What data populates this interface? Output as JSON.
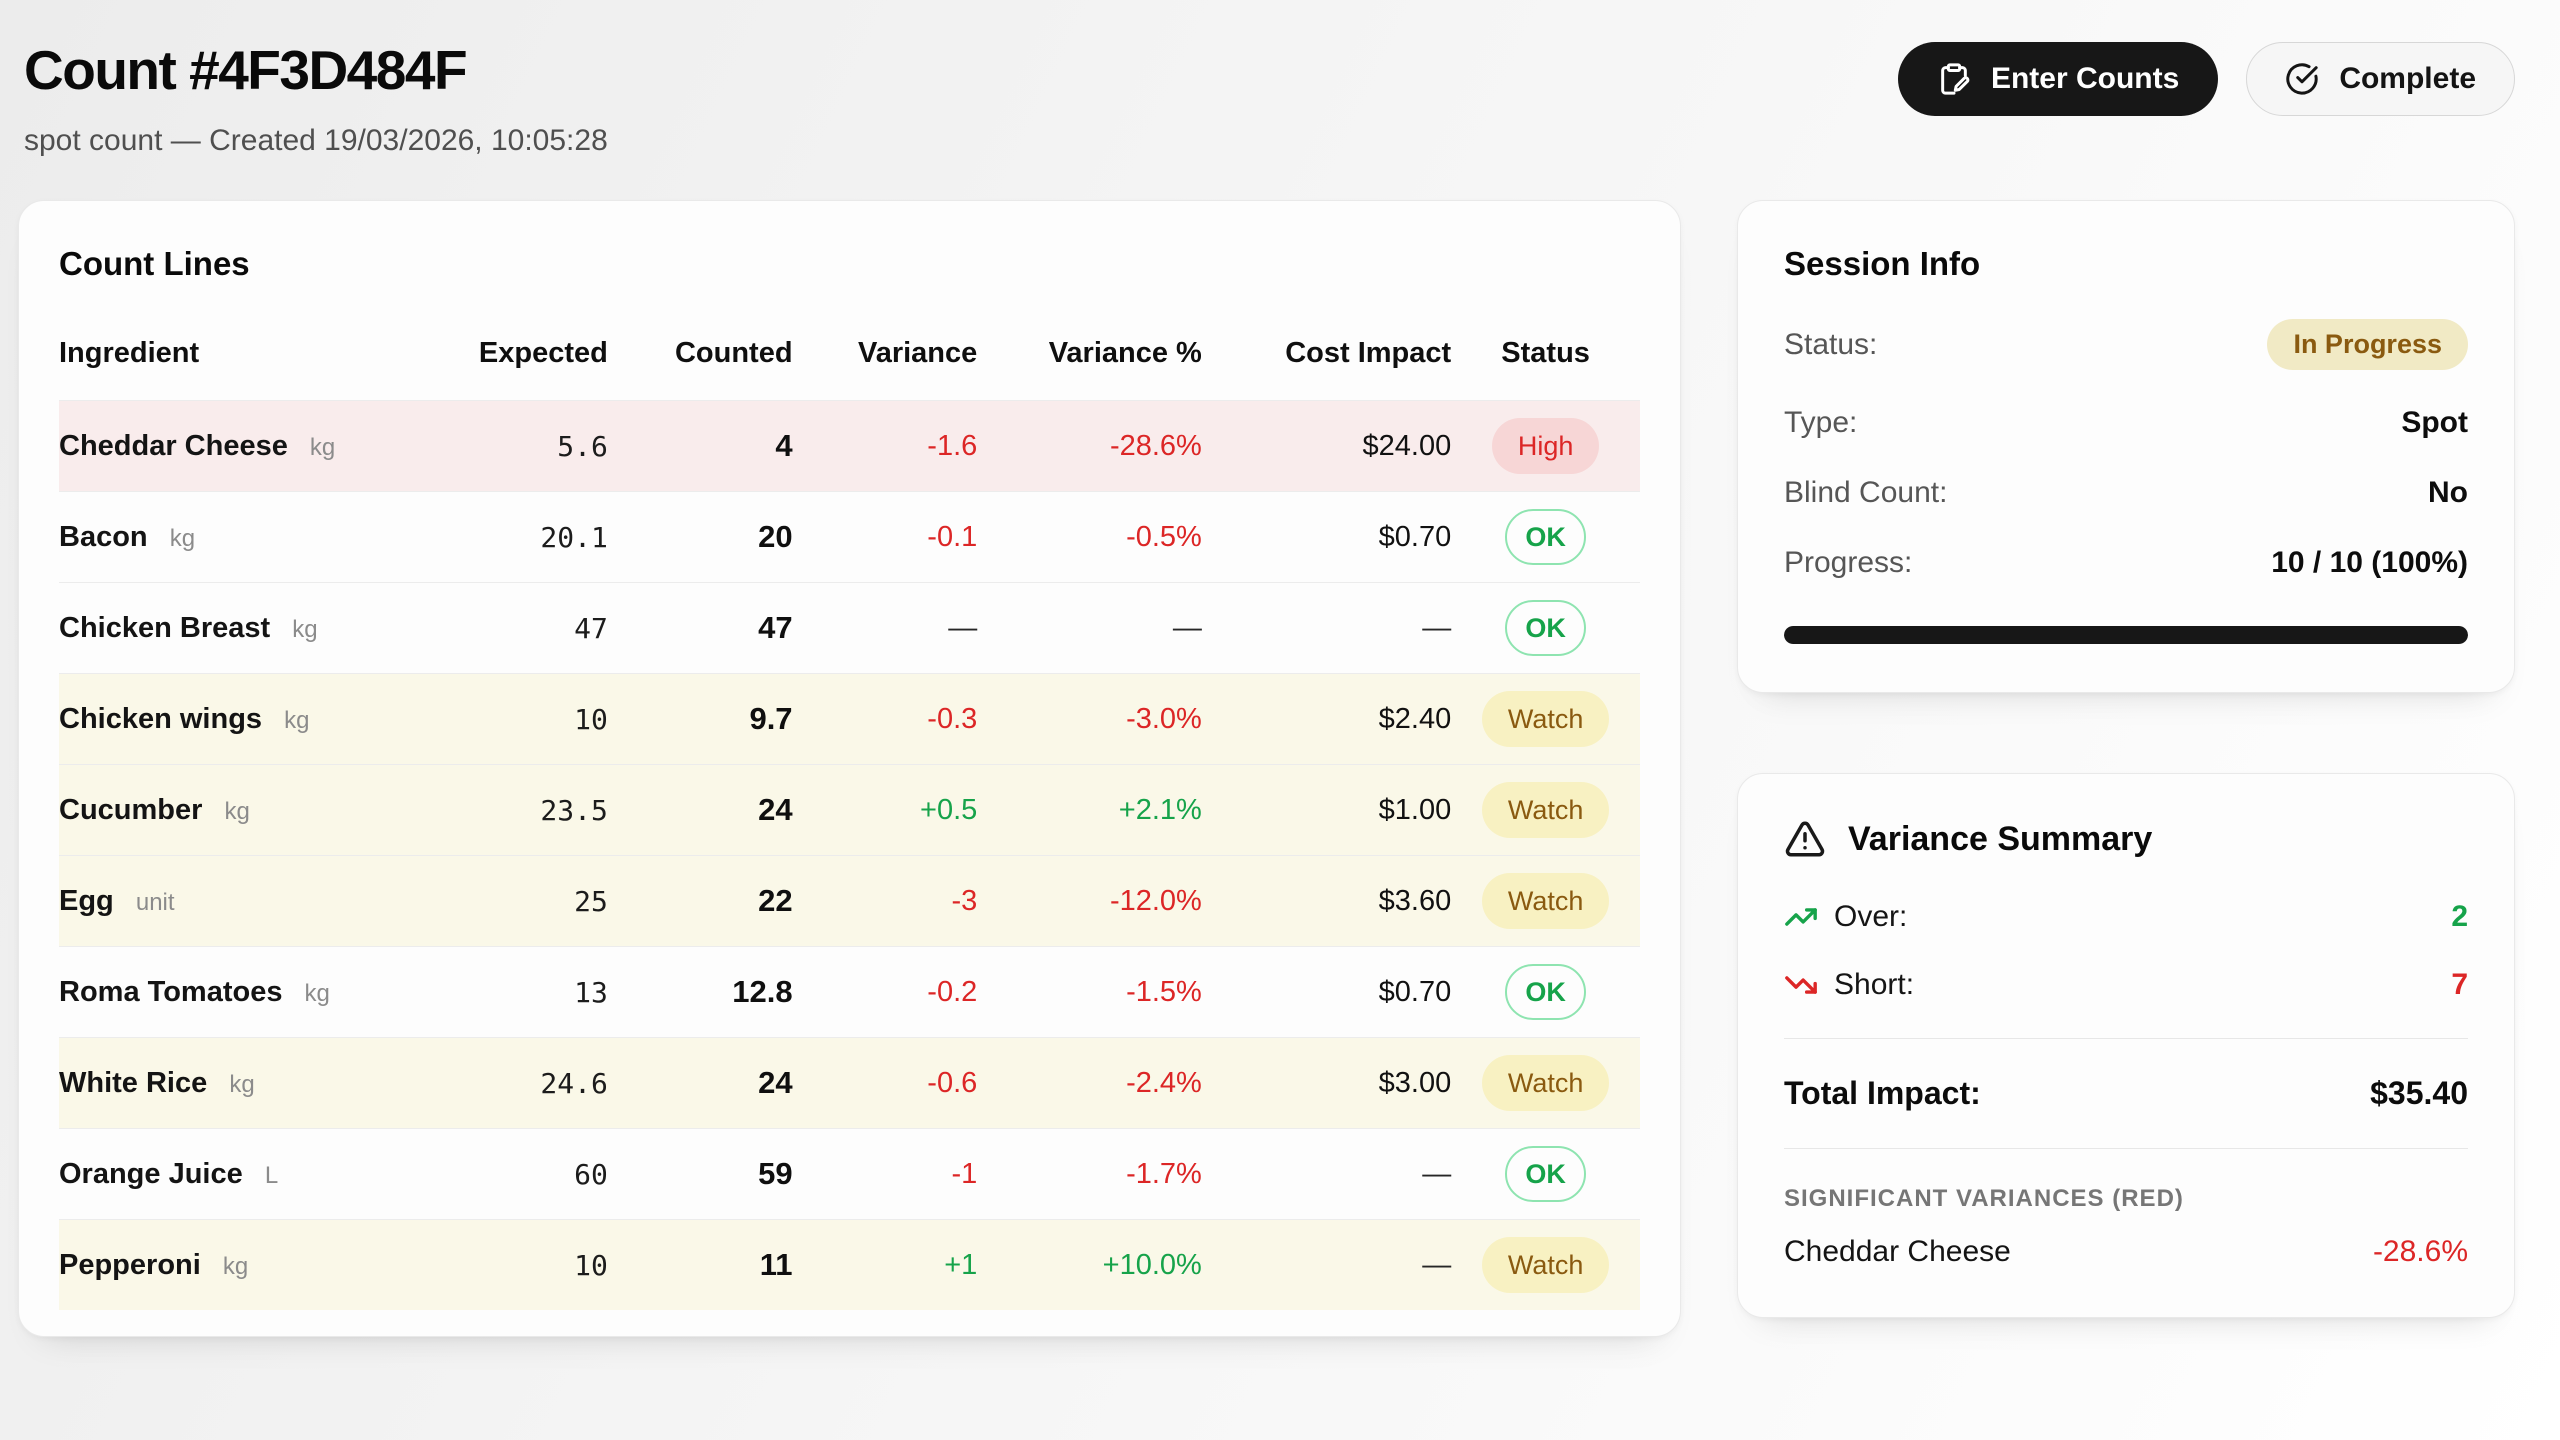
{
  "header": {
    "title": "Count #4F3D484F",
    "subtitle": "spot count — Created 19/03/2026, 10:05:28",
    "buttons": {
      "enter_counts": {
        "label": "Enter Counts",
        "icon": "clipboard-pen-icon"
      },
      "complete": {
        "label": "Complete",
        "icon": "circle-check-icon"
      }
    }
  },
  "count_lines": {
    "title": "Count Lines",
    "columns": [
      "Ingredient",
      "Expected",
      "Counted",
      "Variance",
      "Variance %",
      "Cost Impact",
      "Status"
    ],
    "rows": [
      {
        "ingredient": "Cheddar Cheese",
        "unit": "kg",
        "expected": "5.6",
        "counted": "4",
        "variance": "-1.6",
        "variance_pct": "-28.6%",
        "cost_impact": "$24.00",
        "status": "High",
        "tone": "red",
        "variance_class": "neg",
        "cost_class": "value",
        "status_class": "high"
      },
      {
        "ingredient": "Bacon",
        "unit": "kg",
        "expected": "20.1",
        "counted": "20",
        "variance": "-0.1",
        "variance_pct": "-0.5%",
        "cost_impact": "$0.70",
        "status": "OK",
        "tone": "plain",
        "variance_class": "neg",
        "cost_class": "value",
        "status_class": "ok"
      },
      {
        "ingredient": "Chicken Breast",
        "unit": "kg",
        "expected": "47",
        "counted": "47",
        "variance": "—",
        "variance_pct": "—",
        "cost_impact": "—",
        "status": "OK",
        "tone": "plain",
        "variance_class": "dash",
        "cost_class": "dash",
        "status_class": "ok"
      },
      {
        "ingredient": "Chicken wings",
        "unit": "kg",
        "expected": "10",
        "counted": "9.7",
        "variance": "-0.3",
        "variance_pct": "-3.0%",
        "cost_impact": "$2.40",
        "status": "Watch",
        "tone": "yellow",
        "variance_class": "neg",
        "cost_class": "value",
        "status_class": "watch"
      },
      {
        "ingredient": "Cucumber",
        "unit": "kg",
        "expected": "23.5",
        "counted": "24",
        "variance": "+0.5",
        "variance_pct": "+2.1%",
        "cost_impact": "$1.00",
        "status": "Watch",
        "tone": "yellow",
        "variance_class": "pos",
        "cost_class": "value",
        "status_class": "watch"
      },
      {
        "ingredient": "Egg",
        "unit": "unit",
        "expected": "25",
        "counted": "22",
        "variance": "-3",
        "variance_pct": "-12.0%",
        "cost_impact": "$3.60",
        "status": "Watch",
        "tone": "yellow",
        "variance_class": "neg",
        "cost_class": "value",
        "status_class": "watch"
      },
      {
        "ingredient": "Roma Tomatoes",
        "unit": "kg",
        "expected": "13",
        "counted": "12.8",
        "variance": "-0.2",
        "variance_pct": "-1.5%",
        "cost_impact": "$0.70",
        "status": "OK",
        "tone": "plain",
        "variance_class": "neg",
        "cost_class": "value",
        "status_class": "ok"
      },
      {
        "ingredient": "White Rice",
        "unit": "kg",
        "expected": "24.6",
        "counted": "24",
        "variance": "-0.6",
        "variance_pct": "-2.4%",
        "cost_impact": "$3.00",
        "status": "Watch",
        "tone": "yellow",
        "variance_class": "neg",
        "cost_class": "value",
        "status_class": "watch"
      },
      {
        "ingredient": "Orange Juice",
        "unit": "L",
        "expected": "60",
        "counted": "59",
        "variance": "-1",
        "variance_pct": "-1.7%",
        "cost_impact": "—",
        "status": "OK",
        "tone": "plain",
        "variance_class": "neg",
        "cost_class": "dash",
        "status_class": "ok"
      },
      {
        "ingredient": "Pepperoni",
        "unit": "kg",
        "expected": "10",
        "counted": "11",
        "variance": "+1",
        "variance_pct": "+10.0%",
        "cost_impact": "—",
        "status": "Watch",
        "tone": "yellow",
        "variance_class": "pos",
        "cost_class": "dash",
        "status_class": "watch"
      }
    ]
  },
  "session_info": {
    "title": "Session Info",
    "status_label": "Status:",
    "status_value": "In Progress",
    "type_label": "Type:",
    "type_value": "Spot",
    "blind_label": "Blind Count:",
    "blind_value": "No",
    "progress_label": "Progress:",
    "progress_value": "10 / 10 (100%)",
    "progress_pct": 100
  },
  "variance_summary": {
    "title": "Variance Summary",
    "title_icon": "triangle-alert-icon",
    "over_label": "Over:",
    "over_value": "2",
    "over_icon": "trending-up-icon",
    "short_label": "Short:",
    "short_value": "7",
    "short_icon": "trending-down-icon",
    "total_label": "Total Impact:",
    "total_value": "$35.40",
    "significant_label": "SIGNIFICANT VARIANCES (RED)",
    "significant": [
      {
        "name": "Cheddar Cheese",
        "pct": "-28.6%"
      }
    ]
  },
  "colors": {
    "negative_red": "#dc2626",
    "positive_green": "#16a34a",
    "watch_brown": "#8a5a10",
    "high_badge_bg": "#f7d6d6",
    "watch_badge_bg": "#f8f1c2",
    "red_row_bg": "#f9ecec",
    "yellow_row_bg": "#faf8e8",
    "dark_button_bg": "#171717",
    "progress_fill": "#171717"
  }
}
